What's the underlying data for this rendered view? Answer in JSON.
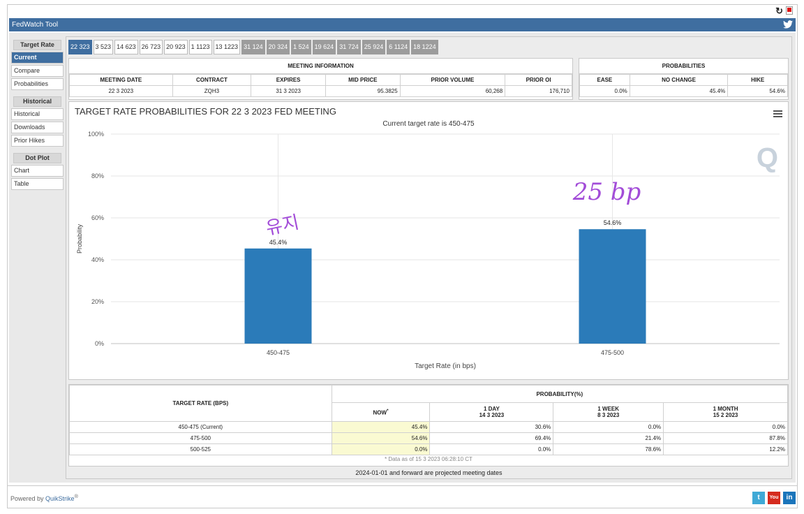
{
  "app": {
    "title": "FedWatch Tool"
  },
  "sidebar": {
    "groups": [
      {
        "header": "Target Rate",
        "items": [
          "Current",
          "Compare",
          "Probabilities"
        ]
      },
      {
        "header": "Historical",
        "items": [
          "Historical",
          "Downloads",
          "Prior Hikes"
        ]
      },
      {
        "header": "Dot Plot",
        "items": [
          "Chart",
          "Table"
        ]
      }
    ]
  },
  "tabs": [
    "22 323",
    "3 523",
    "14 623",
    "26 723",
    "20 923",
    "1 1123",
    "13 1223",
    "31 124",
    "20 324",
    "1 524",
    "19 624",
    "31 724",
    "25 924",
    "6 1124",
    "18 1224"
  ],
  "meeting_info": {
    "title": "MEETING INFORMATION",
    "headers": [
      "MEETING DATE",
      "CONTRACT",
      "EXPIRES",
      "MID PRICE",
      "PRIOR VOLUME",
      "PRIOR OI"
    ],
    "values": [
      "22 3 2023",
      "ZQH3",
      "31 3 2023",
      "95.3825",
      "60,268",
      "176,710"
    ]
  },
  "probabilities": {
    "title": "PROBABILITIES",
    "headers": [
      "EASE",
      "NO CHANGE",
      "HIKE"
    ],
    "values": [
      "0.0%",
      "45.4%",
      "54.6%"
    ]
  },
  "chart_data": {
    "type": "bar",
    "title": "TARGET RATE PROBABILITIES FOR 22 3 2023 FED MEETING",
    "subtitle": "Current target rate is 450-475",
    "categories": [
      "450-475",
      "475-500"
    ],
    "values": [
      45.4,
      54.6
    ],
    "data_labels": [
      "45.4%",
      "54.6%"
    ],
    "xlabel": "Target Rate (in bps)",
    "ylabel": "Probability",
    "ylim": [
      0,
      100
    ],
    "yticks": [
      "0%",
      "20%",
      "40%",
      "60%",
      "80%",
      "100%"
    ],
    "bar_color": "#2b7bb9",
    "grid": true,
    "watermark": "Q",
    "annotations": [
      "유지",
      "25 bp"
    ]
  },
  "bottom_table": {
    "col_header": "TARGET RATE (BPS)",
    "prob_header": "PROBABILITY(%)",
    "periods": [
      {
        "label": "NOW",
        "sup": "*",
        "date": ""
      },
      {
        "label": "1 DAY",
        "date": "14 3 2023"
      },
      {
        "label": "1 WEEK",
        "date": "8 3 2023"
      },
      {
        "label": "1 MONTH",
        "date": "15 2 2023"
      }
    ],
    "rows": [
      {
        "rate": "450-475 (Current)",
        "values": [
          "45.4%",
          "30.6%",
          "0.0%",
          "0.0%"
        ]
      },
      {
        "rate": "475-500",
        "values": [
          "54.6%",
          "69.4%",
          "21.4%",
          "87.8%"
        ]
      },
      {
        "rate": "500-525",
        "values": [
          "0.0%",
          "0.0%",
          "78.6%",
          "12.2%"
        ]
      }
    ],
    "footnote": "* Data as of 15 3 2023 06:28:10 CT"
  },
  "projected_note": "2024-01-01 and forward are projected meeting dates",
  "footer": {
    "powered_prefix": "Powered by ",
    "brand": "QuikStrike",
    "reg": "®"
  },
  "social": [
    {
      "name": "twitter-icon",
      "label": "t",
      "color": "#3fa9d6"
    },
    {
      "name": "youtube-icon",
      "label": "You",
      "color": "#d52b1e"
    },
    {
      "name": "linkedin-icon",
      "label": "in",
      "color": "#1b75bb"
    }
  ]
}
